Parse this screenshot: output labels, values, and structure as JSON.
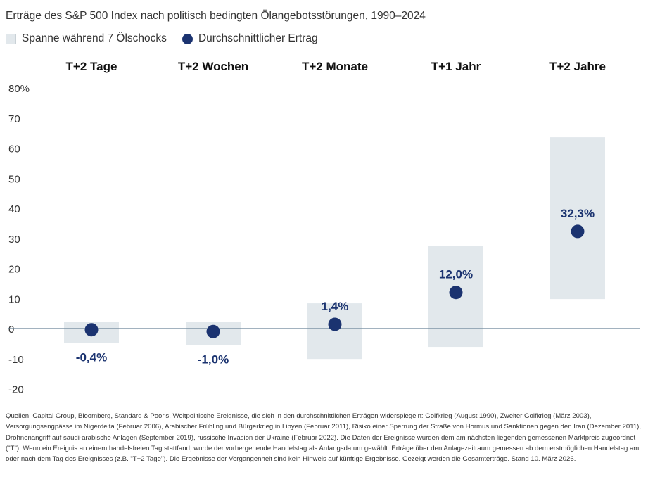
{
  "chart_data": {
    "type": "range-dot",
    "title": "Erträge des S&P 500 Index nach politisch bedingten Ölangebotsstörungen, 1990–2024",
    "legend": [
      {
        "label": "Spanne während 7 Ölschocks",
        "color": "#e2e8ec"
      },
      {
        "label": "Durchschnittlicher Ertrag",
        "color": "#1b3370"
      }
    ],
    "categories": [
      "T+2 Tage",
      "T+2 Wochen",
      "T+2 Monate",
      "T+1 Jahr",
      "T+2 Jahre"
    ],
    "range_low": [
      -4.9,
      -5.4,
      -10.1,
      -6.1,
      9.8
    ],
    "range_high": [
      2.1,
      2.1,
      8.4,
      27.4,
      63.6
    ],
    "average": [
      -0.4,
      -1.0,
      1.4,
      12.0,
      32.3
    ],
    "data_labels": [
      "-0,4%",
      "-1,0%",
      "1,4%",
      "12,0%",
      "32,3%"
    ],
    "yticks": [
      -20,
      -10,
      0,
      10,
      20,
      30,
      40,
      50,
      60,
      70,
      80
    ],
    "ytick_labels": [
      "-20",
      "-10",
      "0",
      "10",
      "20",
      "30",
      "40",
      "50",
      "60",
      "70",
      "80%"
    ],
    "ylim": [
      -20,
      80
    ],
    "grid": false,
    "legend_position": "top-left",
    "colors": {
      "range": "#e2e8ec",
      "dot": "#1b3370",
      "zero_line": "#6b8599",
      "label": "#1b3370"
    }
  },
  "footnote": "Quellen: Capital Group, Bloomberg, Standard & Poor's. Weltpolitische Ereignisse, die sich in den durchschnittlichen Erträgen widerspiegeln: Golfkrieg (August 1990), Zweiter Golfkrieg (März 2003), Versorgungsengpässe im Nigerdelta (Februar 2006), Arabischer Frühling und Bürgerkrieg in Libyen (Februar 2011), Risiko einer Sperrung der Straße von Hormus und Sanktionen gegen den Iran (Dezember 2011), Drohnenangriff auf saudi-arabische Anlagen (September 2019), russische Invasion der Ukraine (Februar 2022). Die Daten der Ereignisse wurden dem am nächsten liegenden gemessenen Marktpreis zugeordnet (\"T\"). Wenn ein Ereignis an einem handelsfreien Tag stattfand, wurde der vorhergehende Handelstag als Anfangsdatum gewählt. Erträge über den Anlagezeitraum gemessen ab dem erstmöglichen Handelstag am oder nach dem Tag des Ereignisses (z.B. \"T+2 Tage\"). Die Ergebnisse der Vergangenheit sind kein Hinweis auf künftige Ergebnisse. Gezeigt werden die Gesamterträge. Stand 10. März 2026."
}
